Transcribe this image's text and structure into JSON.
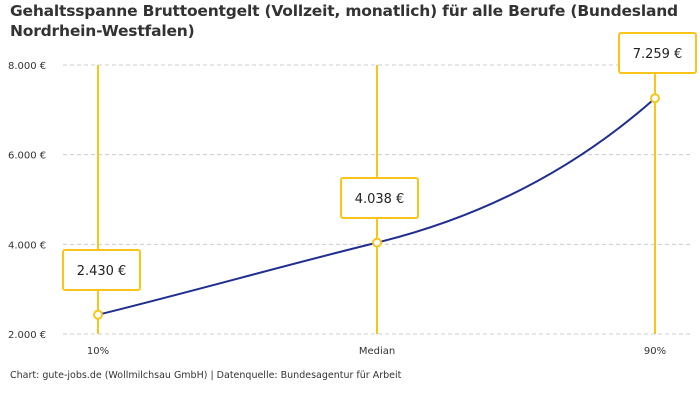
{
  "chart_data": {
    "type": "line",
    "title": "Gehaltsspanne Bruttoentgelt (Vollzeit, monatlich) für alle Berufe (Bundesland Nordrhein-Westfalen)",
    "categories": [
      "10%",
      "Median",
      "90%"
    ],
    "values": [
      2430,
      4038,
      7259
    ],
    "data_labels": [
      "2.430 €",
      "4.038 €",
      "7.259 €"
    ],
    "ylim": [
      2000,
      8000
    ],
    "yticks": [
      2000,
      4000,
      6000,
      8000
    ],
    "ytick_labels": [
      "2.000 €",
      "4.000 €",
      "6.000 €",
      "8.000 €"
    ],
    "grid": true,
    "xlabel": "",
    "ylabel": "",
    "colors": {
      "line": "#1f2f8f",
      "marker": "#f9c51b",
      "grid": "#cccccc"
    }
  },
  "footer": "Chart: gute-jobs.de (Wollmilchsau GmbH) | Datenquelle: Bundesagentur für Arbeit"
}
